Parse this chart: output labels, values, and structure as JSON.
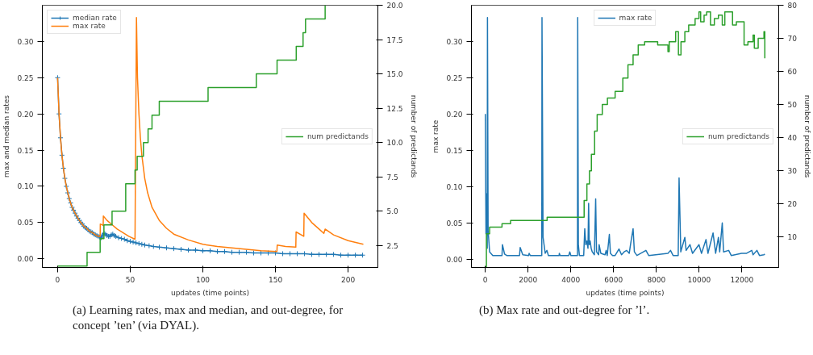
{
  "chart_data": [
    {
      "type": "line",
      "xlabel": "updates (time points)",
      "ylabel": "max and median rates",
      "y2label": "number of predictands",
      "xlim": [
        -10.5,
        220.5
      ],
      "xticks": [
        0,
        50,
        100,
        150,
        200
      ],
      "ylim": [
        -0.012,
        0.35
      ],
      "yticks": [
        {
          "value": 0,
          "label": "0.00"
        },
        {
          "value": 0.05,
          "label": "0.05"
        },
        {
          "value": 0.1,
          "label": "0.10"
        },
        {
          "value": 0.15,
          "label": "0.15"
        },
        {
          "value": 0.2,
          "label": "0.20"
        },
        {
          "value": 0.25,
          "label": "0.25"
        },
        {
          "value": 0.3,
          "label": "0.30"
        }
      ],
      "y2lim": [
        0.9,
        20
      ],
      "y2ticks": [
        {
          "value": 2.5,
          "label": "2.5"
        },
        {
          "value": 5,
          "label": "5.0"
        },
        {
          "value": 7.5,
          "label": "7.5"
        },
        {
          "value": 10,
          "label": "10.0"
        },
        {
          "value": 12.5,
          "label": "12.5"
        },
        {
          "value": 15,
          "label": "15.0"
        },
        {
          "value": 17.5,
          "label": "17.5"
        },
        {
          "value": 20,
          "label": "20.0"
        }
      ],
      "grid": false,
      "legend": "top left",
      "series": [
        {
          "name": "median rate",
          "color": "#1f77b4",
          "marker": "cross",
          "x": [
            0,
            1,
            2,
            3,
            4,
            5,
            6,
            7,
            8,
            9,
            10,
            11,
            12,
            13,
            14,
            15,
            16,
            17,
            18,
            19,
            20,
            21,
            22,
            23,
            24,
            25,
            26,
            27,
            28,
            29,
            30,
            31,
            32,
            33,
            34,
            35,
            36,
            37,
            38,
            39,
            40,
            42,
            44,
            46,
            48,
            50,
            52,
            54,
            56,
            58,
            60,
            63,
            66,
            70,
            75,
            80,
            85,
            90,
            95,
            100,
            105,
            110,
            115,
            120,
            125,
            130,
            135,
            140,
            145,
            150,
            155,
            160,
            165,
            170,
            175,
            180,
            185,
            190,
            195,
            200,
            205,
            210
          ],
          "values": [
            0.25,
            0.2,
            0.167,
            0.143,
            0.125,
            0.111,
            0.1,
            0.091,
            0.083,
            0.077,
            0.071,
            0.067,
            0.063,
            0.059,
            0.056,
            0.053,
            0.05,
            0.048,
            0.045,
            0.043,
            0.042,
            0.04,
            0.038,
            0.037,
            0.036,
            0.034,
            0.033,
            0.032,
            0.031,
            0.03,
            0.029,
            0.033,
            0.035,
            0.034,
            0.032,
            0.031,
            0.031,
            0.033,
            0.034,
            0.032,
            0.031,
            0.029,
            0.028,
            0.027,
            0.025,
            0.024,
            0.023,
            0.022,
            0.021,
            0.02,
            0.019,
            0.018,
            0.017,
            0.016,
            0.015,
            0.014,
            0.013,
            0.012,
            0.012,
            0.011,
            0.011,
            0.01,
            0.01,
            0.009,
            0.009,
            0.009,
            0.008,
            0.008,
            0.008,
            0.008,
            0.007,
            0.007,
            0.007,
            0.007,
            0.006,
            0.006,
            0.006,
            0.006,
            0.005,
            0.005,
            0.005,
            0.005
          ]
        },
        {
          "name": "max rate",
          "color": "#ff7f0e",
          "x": [
            0,
            1,
            2,
            3,
            4,
            5,
            6,
            8,
            10,
            12,
            14,
            16,
            18,
            20,
            22,
            24,
            26,
            28,
            29.3,
            29.4,
            31.4,
            31.5,
            34,
            37.5,
            41,
            45,
            49,
            53.3,
            54.3,
            55,
            56,
            57,
            58,
            60,
            62,
            65,
            70,
            75,
            80,
            90,
            100,
            110,
            120,
            130,
            140,
            151,
            151.2,
            157,
            164,
            164.2,
            169.5,
            169.7,
            175,
            180,
            183.3,
            184.2,
            190,
            200,
            210.5
          ],
          "values": [
            0.25,
            0.2,
            0.167,
            0.143,
            0.125,
            0.111,
            0.1,
            0.083,
            0.071,
            0.063,
            0.056,
            0.05,
            0.045,
            0.042,
            0.038,
            0.036,
            0.033,
            0.031,
            0.031,
            0.048,
            0.046,
            0.059,
            0.053,
            0.047,
            0.041,
            0.036,
            0.031,
            0.027,
            0.333,
            0.25,
            0.2,
            0.167,
            0.143,
            0.111,
            0.091,
            0.071,
            0.053,
            0.042,
            0.034,
            0.026,
            0.02,
            0.017,
            0.015,
            0.013,
            0.011,
            0.01,
            0.019,
            0.017,
            0.016,
            0.037,
            0.031,
            0.063,
            0.05,
            0.041,
            0.035,
            0.041,
            0.033,
            0.025,
            0.02
          ]
        },
        {
          "name": "num predictands",
          "color": "#2ca02c",
          "type": "step",
          "axis": "y2",
          "x": [
            0,
            20.3,
            29.3,
            31.9,
            37.5,
            46.9,
            53.3,
            54.8,
            59.1,
            62.3,
            65,
            70,
            103.6,
            136.8,
            151.1,
            164.3,
            169,
            170.7,
            184.2
          ],
          "values": [
            1,
            2,
            3,
            4,
            5,
            7,
            8,
            9,
            10,
            11,
            12,
            13,
            14,
            15,
            16,
            17,
            18,
            19,
            20
          ]
        }
      ],
      "annotations": [
        "(a) Learning rates, max and median, and out-degree, for concept ’ten’ (via DYAL)."
      ]
    },
    {
      "type": "line",
      "xlabel": "updates (time points)",
      "ylabel": "max rate",
      "y2label": "number of predictands",
      "xlim": [
        -650,
        13720
      ],
      "xticks": [
        0,
        2000,
        4000,
        6000,
        8000,
        10000,
        12000
      ],
      "ylim": [
        -0.0115,
        0.35
      ],
      "yticks": [
        {
          "value": 0,
          "label": "0.00"
        },
        {
          "value": 0.05,
          "label": "0.05"
        },
        {
          "value": 0.1,
          "label": "0.10"
        },
        {
          "value": 0.15,
          "label": "0.15"
        },
        {
          "value": 0.2,
          "label": "0.20"
        },
        {
          "value": 0.25,
          "label": "0.25"
        },
        {
          "value": 0.3,
          "label": "0.30"
        }
      ],
      "y2lim": [
        0.8,
        80
      ],
      "y2ticks": [
        10,
        20,
        30,
        40,
        50,
        60,
        70,
        80
      ],
      "grid": false,
      "legend": "top",
      "series": [
        {
          "name": "max rate",
          "color": "#1f77b4",
          "x": [
            0,
            30,
            60,
            90,
            100,
            130,
            200,
            350,
            780,
            800,
            900,
            1000,
            1600,
            1630,
            1750,
            2020,
            2050,
            2100,
            2640,
            2650,
            2700,
            2800,
            2880,
            2950,
            3450,
            3460,
            3500,
            3900,
            3950,
            4000,
            4310,
            4320,
            4350,
            4400,
            4600,
            4650,
            4700,
            4750,
            4800,
            4830,
            4860,
            4900,
            4950,
            5000,
            5100,
            5160,
            5200,
            5300,
            5320,
            5400,
            5600,
            5650,
            5700,
            5800,
            5850,
            5950,
            6070,
            6250,
            6370,
            6490,
            6610,
            6730,
            6790,
            6910,
            6970,
            7090,
            7510,
            7640,
            8540,
            8660,
            8780,
            9020,
            9060,
            9140,
            9330,
            9390,
            9570,
            9690,
            9990,
            10110,
            10320,
            10410,
            10650,
            10770,
            10900,
            10960,
            11080,
            11140,
            11380,
            11500,
            11980,
            12220,
            12460,
            12520,
            12700,
            12820,
            13030,
            13070
          ],
          "values": [
            0.2,
            0.035,
            0.09,
            0.015,
            0.333,
            0.04,
            0.01,
            0.005,
            0.005,
            0.02,
            0.007,
            0.005,
            0.005,
            0.016,
            0.006,
            0.005,
            0.008,
            0.005,
            0.005,
            0.333,
            0.03,
            0.008,
            0.012,
            0.005,
            0.005,
            0.008,
            0.005,
            0.005,
            0.01,
            0.005,
            0.005,
            0.333,
            0.02,
            0.005,
            0.005,
            0.042,
            0.02,
            0.025,
            0.015,
            0.077,
            0.02,
            0.025,
            0.015,
            0.01,
            0.006,
            0.083,
            0.01,
            0.006,
            0.02,
            0.008,
            0.006,
            0.012,
            0.005,
            0.034,
            0.008,
            0.005,
            0.005,
            0.014,
            0.006,
            0.01,
            0.012,
            0.008,
            0.02,
            0.042,
            0.01,
            0.005,
            0.012,
            0.005,
            0.008,
            0.012,
            0.005,
            0.005,
            0.112,
            0.01,
            0.03,
            0.012,
            0.02,
            0.008,
            0.02,
            0.008,
            0.027,
            0.008,
            0.036,
            0.008,
            0.03,
            0.01,
            0.05,
            0.01,
            0.012,
            0.005,
            0.008,
            0.008,
            0.012,
            0.006,
            0.012,
            0.005,
            0.006,
            0.007
          ]
        },
        {
          "name": "num predictands",
          "color": "#2ca02c",
          "type": "step",
          "axis": "y2",
          "x": [
            0,
            50,
            200,
            780,
            1180,
            2890,
            4620,
            4750,
            4870,
            4960,
            5110,
            5230,
            5470,
            5710,
            6070,
            6430,
            6670,
            6910,
            7150,
            7450,
            7640,
            8060,
            8540,
            8600,
            8900,
            9030,
            9150,
            9330,
            9510,
            9810,
            9990,
            10070,
            10230,
            10350,
            10530,
            10710,
            10900,
            11080,
            11200,
            11560,
            11740,
            12100,
            12280,
            12520,
            12580,
            12760,
            13030,
            13070
          ],
          "values": [
            1,
            11,
            13,
            14,
            15,
            16,
            21,
            26,
            30,
            35,
            42,
            47,
            50,
            52,
            54,
            58,
            62,
            65,
            68,
            69,
            69,
            68,
            66,
            69,
            72,
            65,
            69,
            72,
            74,
            76,
            78,
            75,
            77,
            78,
            74,
            76,
            77,
            74,
            78,
            74,
            75,
            68,
            69,
            71,
            67,
            70,
            72,
            64
          ]
        }
      ],
      "annotations": [
        "(b) Max rate and out-degree for ’l’."
      ]
    }
  ]
}
